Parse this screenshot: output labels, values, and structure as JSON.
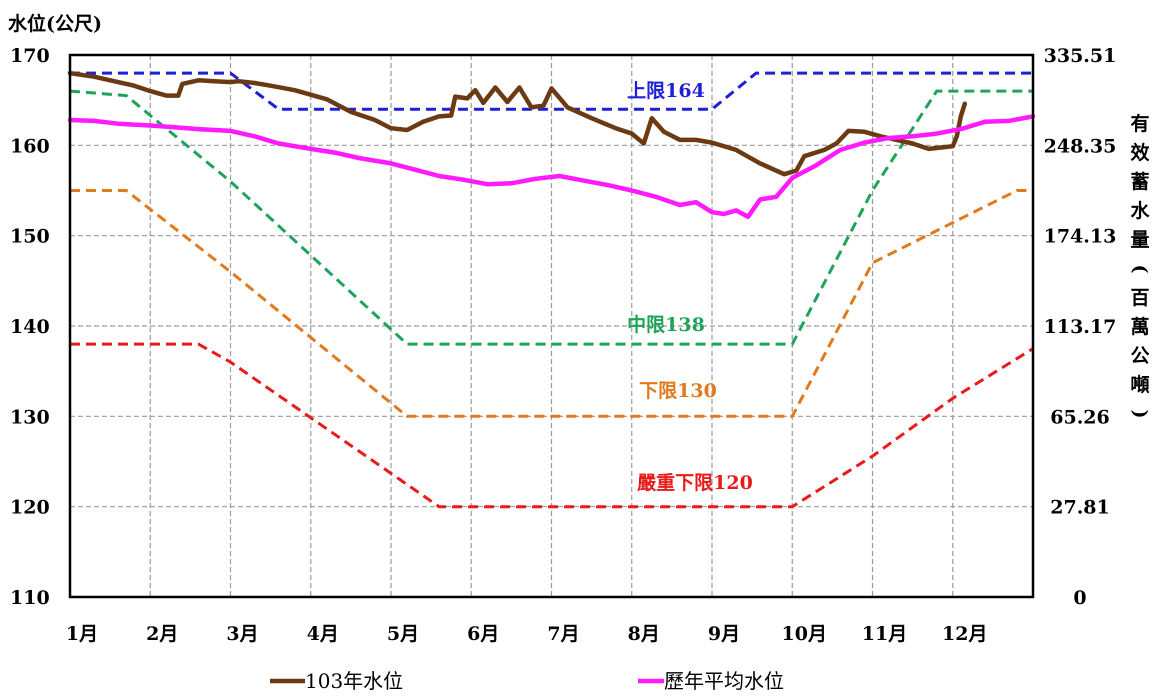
{
  "chart_data": {
    "type": "line",
    "ylabel_left": "水位(公尺)",
    "ylabel_right_chars": [
      "有",
      "效",
      "蓄",
      "水",
      "量",
      "(",
      "百",
      "萬",
      "公",
      "噸",
      ")"
    ],
    "ylim": [
      110,
      170
    ],
    "yticks": [
      110,
      120,
      130,
      140,
      150,
      160,
      170
    ],
    "right_ticks": [
      {
        "level": 170,
        "label": "335.51"
      },
      {
        "level": 160,
        "label": "248.35"
      },
      {
        "level": 150,
        "label": "174.13"
      },
      {
        "level": 140,
        "label": "113.17"
      },
      {
        "level": 130,
        "label": "65.26"
      },
      {
        "level": 120,
        "label": "27.81"
      },
      {
        "level": 110,
        "label": "0"
      }
    ],
    "x_domain": [
      1,
      13
    ],
    "months": [
      "1月",
      "2月",
      "3月",
      "4月",
      "5月",
      "6月",
      "7月",
      "8月",
      "9月",
      "10月",
      "11月",
      "12月"
    ],
    "grid": true,
    "limit_curves": [
      {
        "name": "上限",
        "label": "上限164",
        "color": "#1f1fd6",
        "points": [
          [
            1,
            168
          ],
          [
            3,
            168
          ],
          [
            3.6,
            164
          ],
          [
            9,
            164
          ],
          [
            9.55,
            168
          ],
          [
            13,
            168
          ]
        ]
      },
      {
        "name": "中限",
        "label": "中限138",
        "color": "#1fa35a",
        "points": [
          [
            1,
            166
          ],
          [
            1.7,
            165.5
          ],
          [
            3,
            156
          ],
          [
            5.2,
            138
          ],
          [
            10,
            138
          ],
          [
            11,
            155
          ],
          [
            11.8,
            166
          ],
          [
            13,
            166
          ]
        ]
      },
      {
        "name": "下限",
        "label": "下限130",
        "color": "#e07a1f",
        "points": [
          [
            1,
            155
          ],
          [
            1.7,
            155
          ],
          [
            3,
            146
          ],
          [
            5.2,
            130
          ],
          [
            10,
            130
          ],
          [
            11,
            147
          ],
          [
            12.8,
            155
          ],
          [
            13,
            155
          ]
        ]
      },
      {
        "name": "嚴重下限",
        "label": "嚴重下限120",
        "color": "#e81b1b",
        "points": [
          [
            1,
            138
          ],
          [
            2.6,
            138
          ],
          [
            3,
            136
          ],
          [
            5.6,
            120
          ],
          [
            10,
            120
          ],
          [
            11,
            125.6
          ],
          [
            12,
            132
          ],
          [
            13,
            137.5
          ]
        ]
      }
    ],
    "series": [
      {
        "name": "103年水位",
        "color": "#6b3a12",
        "points": [
          [
            1,
            168
          ],
          [
            1.3,
            167.6
          ],
          [
            1.5,
            167.2
          ],
          [
            1.8,
            166.6
          ],
          [
            2,
            166
          ],
          [
            2.2,
            165.5
          ],
          [
            2.35,
            165.5
          ],
          [
            2.4,
            166.8
          ],
          [
            2.6,
            167.2
          ],
          [
            2.8,
            167.1
          ],
          [
            3,
            167
          ],
          [
            3.1,
            167.1
          ],
          [
            3.3,
            166.9
          ],
          [
            3.5,
            166.6
          ],
          [
            3.8,
            166.1
          ],
          [
            4,
            165.6
          ],
          [
            4.2,
            165.1
          ],
          [
            4.5,
            163.7
          ],
          [
            4.8,
            162.8
          ],
          [
            5,
            161.9
          ],
          [
            5.2,
            161.7
          ],
          [
            5.4,
            162.6
          ],
          [
            5.6,
            163.2
          ],
          [
            5.75,
            163.3
          ],
          [
            5.8,
            165.4
          ],
          [
            5.95,
            165.2
          ],
          [
            6.05,
            166.1
          ],
          [
            6.15,
            164.7
          ],
          [
            6.3,
            166.4
          ],
          [
            6.45,
            164.8
          ],
          [
            6.6,
            166.4
          ],
          [
            6.75,
            164.2
          ],
          [
            6.9,
            164.4
          ],
          [
            7,
            166.3
          ],
          [
            7.2,
            164.2
          ],
          [
            7.5,
            163
          ],
          [
            7.8,
            161.9
          ],
          [
            8,
            161.3
          ],
          [
            8.15,
            160.2
          ],
          [
            8.25,
            163
          ],
          [
            8.4,
            161.5
          ],
          [
            8.6,
            160.6
          ],
          [
            8.8,
            160.6
          ],
          [
            9,
            160.3
          ],
          [
            9.3,
            159.5
          ],
          [
            9.6,
            158
          ],
          [
            9.9,
            156.8
          ],
          [
            10.05,
            157.2
          ],
          [
            10.15,
            158.8
          ],
          [
            10.4,
            159.5
          ],
          [
            10.55,
            160.2
          ],
          [
            10.7,
            161.6
          ],
          [
            10.9,
            161.5
          ],
          [
            11.1,
            161
          ],
          [
            11.3,
            160.6
          ],
          [
            11.5,
            160.2
          ],
          [
            11.7,
            159.6
          ],
          [
            11.9,
            159.8
          ],
          [
            12,
            159.9
          ],
          [
            12.05,
            161
          ],
          [
            12.1,
            163.2
          ],
          [
            12.15,
            164.6
          ]
        ]
      },
      {
        "name": "歷年平均水位",
        "color": "#ff1aff",
        "points": [
          [
            1,
            162.8
          ],
          [
            1.3,
            162.7
          ],
          [
            1.6,
            162.4
          ],
          [
            2,
            162.2
          ],
          [
            2.3,
            162
          ],
          [
            2.6,
            161.8
          ],
          [
            3,
            161.6
          ],
          [
            3.3,
            161
          ],
          [
            3.6,
            160.2
          ],
          [
            4,
            159.6
          ],
          [
            4.3,
            159.2
          ],
          [
            4.6,
            158.6
          ],
          [
            5,
            158
          ],
          [
            5.3,
            157.3
          ],
          [
            5.6,
            156.6
          ],
          [
            5.9,
            156.2
          ],
          [
            6.2,
            155.7
          ],
          [
            6.5,
            155.8
          ],
          [
            6.8,
            156.3
          ],
          [
            7.1,
            156.6
          ],
          [
            7.4,
            156.1
          ],
          [
            7.7,
            155.6
          ],
          [
            8,
            155
          ],
          [
            8.3,
            154.3
          ],
          [
            8.6,
            153.4
          ],
          [
            8.8,
            153.7
          ],
          [
            9,
            152.6
          ],
          [
            9.15,
            152.4
          ],
          [
            9.3,
            152.8
          ],
          [
            9.45,
            152.1
          ],
          [
            9.6,
            154
          ],
          [
            9.8,
            154.3
          ],
          [
            10,
            156.4
          ],
          [
            10.3,
            157.8
          ],
          [
            10.6,
            159.5
          ],
          [
            10.9,
            160.3
          ],
          [
            11.2,
            160.8
          ],
          [
            11.5,
            161
          ],
          [
            11.8,
            161.3
          ],
          [
            12.1,
            161.8
          ],
          [
            12.4,
            162.6
          ],
          [
            12.7,
            162.7
          ],
          [
            13,
            163.2
          ]
        ]
      }
    ]
  },
  "legend": [
    {
      "label": "103年水位",
      "color": "#6b3a12"
    },
    {
      "label": "歷年平均水位",
      "color": "#ff1aff"
    }
  ]
}
